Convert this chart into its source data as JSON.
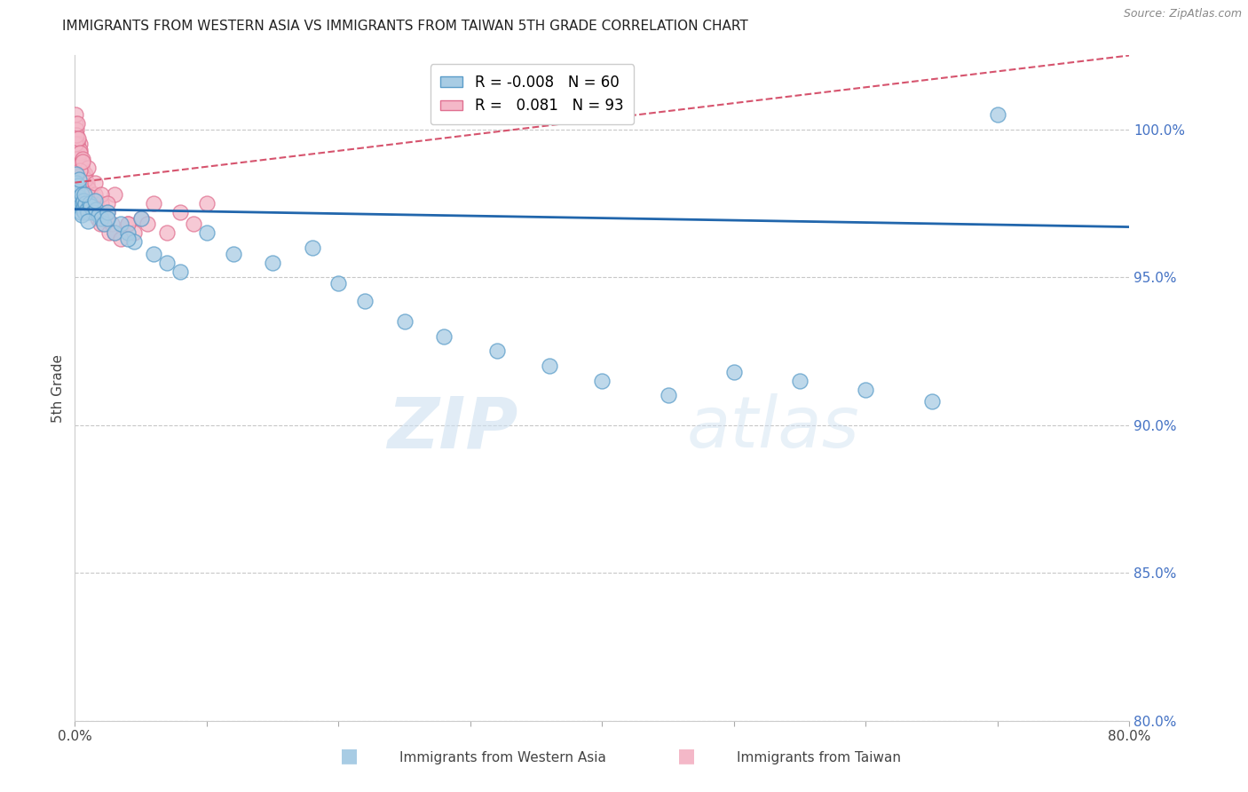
{
  "title": "IMMIGRANTS FROM WESTERN ASIA VS IMMIGRANTS FROM TAIWAN 5TH GRADE CORRELATION CHART",
  "source": "Source: ZipAtlas.com",
  "ylabel": "5th Grade",
  "ylabel_right_ticks": [
    100.0,
    95.0,
    90.0,
    85.0,
    80.0
  ],
  "ylabel_right_labels": [
    "100.0%",
    "95.0%",
    "90.0%",
    "85.0%",
    "80.0%"
  ],
  "legend_blue_R": "-0.008",
  "legend_blue_N": "60",
  "legend_pink_R": "0.081",
  "legend_pink_N": "93",
  "legend_blue_label": "Immigrants from Western Asia",
  "legend_pink_label": "Immigrants from Taiwan",
  "blue_color": "#a8cce4",
  "pink_color": "#f4b8c8",
  "blue_edge": "#5b9dc9",
  "pink_edge": "#e07090",
  "trend_blue_color": "#2166ac",
  "trend_pink_color": "#d6546e",
  "xlim": [
    0.0,
    80.0
  ],
  "ylim": [
    80.0,
    102.5
  ],
  "blue_trend_x": [
    0.0,
    80.0
  ],
  "blue_trend_y": [
    97.3,
    96.7
  ],
  "pink_trend_x": [
    0.0,
    80.0
  ],
  "pink_trend_y": [
    98.2,
    102.5
  ],
  "blue_x": [
    0.05,
    0.08,
    0.1,
    0.12,
    0.15,
    0.2,
    0.25,
    0.3,
    0.35,
    0.4,
    0.45,
    0.5,
    0.55,
    0.6,
    0.65,
    0.7,
    0.75,
    0.8,
    0.9,
    1.0,
    1.1,
    1.2,
    1.4,
    1.6,
    1.8,
    2.0,
    2.2,
    2.5,
    3.0,
    3.5,
    4.0,
    4.5,
    5.0,
    6.0,
    7.0,
    8.0,
    10.0,
    12.0,
    15.0,
    18.0,
    20.0,
    22.0,
    25.0,
    28.0,
    32.0,
    36.0,
    40.0,
    45.0,
    50.0,
    55.0,
    60.0,
    65.0,
    70.0,
    0.3,
    0.5,
    0.7,
    1.0,
    1.5,
    2.5,
    4.0
  ],
  "blue_y": [
    98.0,
    97.8,
    98.5,
    98.2,
    97.5,
    97.9,
    98.1,
    97.7,
    97.6,
    97.4,
    97.2,
    97.8,
    97.5,
    97.3,
    97.6,
    97.4,
    97.2,
    97.5,
    97.3,
    97.2,
    97.5,
    97.4,
    97.2,
    97.3,
    97.1,
    97.0,
    96.8,
    97.2,
    96.5,
    96.8,
    96.5,
    96.2,
    97.0,
    95.8,
    95.5,
    95.2,
    96.5,
    95.8,
    95.5,
    96.0,
    94.8,
    94.2,
    93.5,
    93.0,
    92.5,
    92.0,
    91.5,
    91.0,
    91.8,
    91.5,
    91.2,
    90.8,
    100.5,
    98.3,
    97.1,
    97.8,
    96.9,
    97.6,
    97.0,
    96.3
  ],
  "pink_x": [
    0.02,
    0.04,
    0.06,
    0.08,
    0.1,
    0.12,
    0.14,
    0.16,
    0.18,
    0.2,
    0.22,
    0.25,
    0.28,
    0.3,
    0.32,
    0.35,
    0.38,
    0.4,
    0.42,
    0.45,
    0.48,
    0.5,
    0.55,
    0.6,
    0.65,
    0.7,
    0.75,
    0.8,
    0.85,
    0.9,
    0.95,
    1.0,
    1.1,
    1.2,
    1.3,
    1.4,
    1.5,
    1.6,
    1.7,
    1.8,
    1.9,
    2.0,
    2.2,
    2.4,
    2.6,
    2.8,
    3.0,
    3.5,
    4.0,
    4.5,
    5.0,
    5.5,
    6.0,
    7.0,
    8.0,
    9.0,
    10.0,
    0.1,
    0.15,
    0.2,
    0.25,
    0.3,
    0.35,
    0.4,
    0.5,
    0.6,
    0.7,
    0.8,
    0.9,
    1.0,
    1.2,
    1.5,
    2.0,
    2.5,
    3.0,
    0.05,
    0.1,
    0.15,
    0.2,
    0.25,
    0.3,
    0.4,
    0.5,
    0.6,
    0.8,
    1.0,
    1.5,
    2.0,
    2.5,
    4.0,
    0.35,
    0.55,
    0.75
  ],
  "pink_y": [
    100.2,
    99.8,
    100.5,
    99.5,
    100.0,
    99.3,
    99.7,
    99.0,
    99.5,
    99.2,
    98.8,
    99.0,
    98.5,
    99.3,
    98.7,
    99.5,
    98.3,
    98.8,
    98.5,
    99.0,
    98.2,
    98.7,
    98.5,
    98.0,
    98.3,
    97.8,
    98.5,
    98.0,
    97.5,
    98.2,
    97.8,
    98.0,
    97.5,
    97.8,
    97.3,
    97.6,
    97.2,
    97.5,
    97.0,
    97.3,
    96.8,
    97.2,
    96.8,
    97.0,
    96.5,
    96.8,
    96.5,
    96.3,
    96.8,
    96.5,
    97.0,
    96.8,
    97.5,
    96.5,
    97.2,
    96.8,
    97.5,
    99.2,
    99.5,
    98.8,
    99.0,
    98.5,
    99.3,
    98.2,
    98.7,
    98.3,
    97.8,
    98.5,
    97.5,
    98.0,
    97.3,
    97.8,
    97.5,
    97.2,
    97.8,
    99.5,
    99.8,
    100.2,
    99.0,
    99.7,
    98.8,
    99.2,
    98.5,
    99.0,
    98.3,
    98.7,
    98.2,
    97.8,
    97.5,
    96.8,
    98.6,
    98.9,
    97.6
  ]
}
